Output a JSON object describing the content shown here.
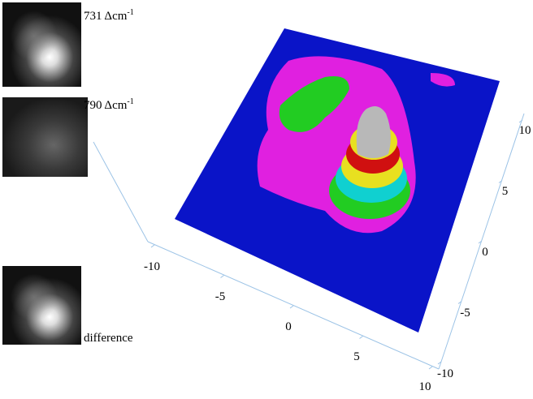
{
  "panels": [
    {
      "text": "731 Δcm",
      "superscript": "-1"
    },
    {
      "text": "790 Δcm",
      "superscript": "-1"
    },
    {
      "text": "difference"
    }
  ],
  "axes": {
    "front": {
      "ticks": [
        -10,
        -5,
        0,
        5,
        10
      ]
    },
    "right": {
      "ticks": [
        -10,
        -5,
        0,
        5,
        10
      ]
    }
  }
}
